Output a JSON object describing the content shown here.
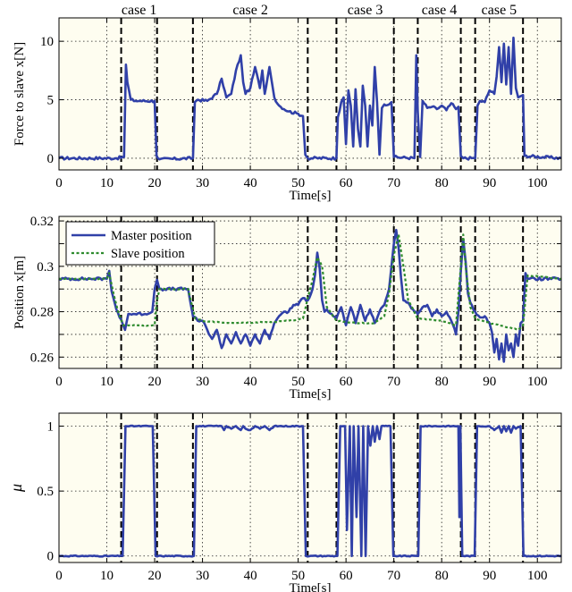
{
  "chart_data": [
    {
      "type": "line",
      "xlabel": "Time[s]",
      "ylabel": "Force to slave x[N]",
      "xlim": [
        0,
        105
      ],
      "ylim": [
        -1,
        12
      ],
      "xticks": [
        0,
        10,
        20,
        30,
        40,
        50,
        60,
        70,
        80,
        90,
        100
      ],
      "yticks": [
        0,
        5,
        10
      ],
      "grid": true,
      "case_markers": [
        13,
        20.5,
        28,
        52,
        58,
        70,
        75,
        84,
        87,
        97
      ],
      "case_labels": [
        {
          "label": "case 1",
          "x": 16.75
        },
        {
          "label": "case 2",
          "x": 40
        },
        {
          "label": "case 3",
          "x": 64
        },
        {
          "label": "case 4",
          "x": 79.5
        },
        {
          "label": "case 5",
          "x": 92
        }
      ],
      "series": [
        {
          "color": "#3040a8",
          "style": "solid",
          "x": [
            0,
            12,
            13.6,
            14,
            14.3,
            15,
            16,
            17,
            20,
            20.4,
            21,
            28,
            28.4,
            29,
            31,
            33,
            34,
            35,
            36,
            37,
            38,
            38.5,
            39,
            40,
            41,
            42,
            42.5,
            43,
            44,
            44.5,
            45,
            46,
            48,
            50,
            51,
            51.5,
            52,
            58,
            58.3,
            59,
            59.5,
            60,
            60.5,
            61,
            61.5,
            62,
            62.5,
            63,
            63.5,
            64,
            64.5,
            65,
            65.5,
            66,
            66.5,
            67,
            67.5,
            68,
            69,
            69.5,
            70,
            74.3,
            74.7,
            75,
            75.5,
            76,
            77,
            78,
            79,
            80,
            81,
            82,
            83,
            83.5,
            84,
            84.5,
            87,
            87.5,
            88,
            89,
            90,
            91,
            91.5,
            92,
            92.5,
            93,
            93.5,
            94,
            94.5,
            95,
            95.5,
            96,
            96.5,
            97,
            97.3,
            105
          ],
          "y": [
            0,
            0,
            0.1,
            8,
            6.5,
            5,
            4.9,
            4.9,
            4.9,
            0.2,
            -0.1,
            0,
            4.8,
            5,
            4.9,
            5.5,
            6.8,
            5.2,
            5.5,
            7.5,
            8.8,
            6.5,
            5.5,
            6,
            7.8,
            6,
            7.5,
            5.5,
            7.8,
            6.5,
            5.2,
            4.5,
            4,
            3.8,
            3.6,
            0.3,
            0,
            0,
            3.5,
            4.8,
            5.2,
            1.2,
            5.8,
            4.5,
            1,
            5.9,
            2.5,
            1,
            6.2,
            4.5,
            1,
            4.5,
            2.8,
            7.8,
            4.8,
            0.3,
            4.3,
            4.6,
            4.6,
            4.8,
            0.1,
            0,
            8.8,
            4,
            0.1,
            4.9,
            4.3,
            4.4,
            4.2,
            4.5,
            4.1,
            4.7,
            4.2,
            4.4,
            0.2,
            0,
            0,
            4.5,
            4.9,
            4.8,
            5.8,
            5.5,
            7,
            9.5,
            6.5,
            9.8,
            6.3,
            9.5,
            5.5,
            10.3,
            6,
            5.2,
            5.3,
            5.4,
            0.2,
            0
          ],
          "noise": 0.12
        }
      ]
    },
    {
      "type": "line",
      "xlabel": "Time[s]",
      "ylabel": "Position x[m]",
      "xlim": [
        0,
        105
      ],
      "ylim": [
        0.255,
        0.322
      ],
      "xticks": [
        0,
        10,
        20,
        30,
        40,
        50,
        60,
        70,
        80,
        90,
        100
      ],
      "yticks": [
        0.26,
        0.27,
        0.28,
        0.29,
        0.3,
        0.31,
        0.32
      ],
      "yticklabels": [
        "0.26",
        "",
        "0.28",
        "",
        "0.3",
        "",
        "0.32"
      ],
      "grid": true,
      "legend": "top-left",
      "case_markers": [
        13,
        20.5,
        28,
        52,
        58,
        70,
        75,
        84,
        87,
        97
      ],
      "series": [
        {
          "name": "Master position",
          "color": "#3040a8",
          "style": "solid",
          "x": [
            0,
            10,
            10.5,
            11,
            11.5,
            12,
            13,
            13.8,
            14.5,
            15.5,
            18,
            19.5,
            20,
            20.5,
            21,
            22,
            27,
            28,
            29,
            30,
            31,
            32,
            33,
            34,
            35,
            36,
            37,
            38,
            39,
            40,
            41,
            42,
            43,
            44,
            45,
            46,
            47,
            48,
            49,
            50,
            51,
            52,
            53,
            53.5,
            54,
            54.5,
            55,
            55.5,
            56,
            57,
            58,
            59,
            60,
            61,
            62,
            63,
            64,
            65,
            66,
            67,
            68,
            69,
            69.5,
            70,
            70.5,
            71,
            71.5,
            72,
            73,
            74,
            75,
            76,
            77,
            78,
            79,
            80,
            81,
            82,
            83,
            83.5,
            84,
            84.5,
            85,
            85.5,
            86,
            87,
            88,
            89,
            90,
            90.5,
            91,
            91.5,
            92,
            92.5,
            93,
            93.5,
            94,
            94.5,
            95,
            95.5,
            96,
            96.5,
            97,
            97.5,
            98,
            105
          ],
          "y": [
            0.2945,
            0.2945,
            0.298,
            0.289,
            0.285,
            0.281,
            0.2765,
            0.272,
            0.279,
            0.279,
            0.279,
            0.28,
            0.29,
            0.294,
            0.29,
            0.29,
            0.29,
            0.278,
            0.276,
            0.276,
            0.272,
            0.268,
            0.272,
            0.264,
            0.27,
            0.266,
            0.271,
            0.266,
            0.27,
            0.265,
            0.27,
            0.266,
            0.272,
            0.268,
            0.275,
            0.278,
            0.28,
            0.28,
            0.283,
            0.283,
            0.286,
            0.285,
            0.29,
            0.296,
            0.306,
            0.299,
            0.285,
            0.28,
            0.281,
            0.279,
            0.277,
            0.282,
            0.274,
            0.282,
            0.275,
            0.283,
            0.276,
            0.281,
            0.275,
            0.28,
            0.283,
            0.29,
            0.3,
            0.31,
            0.316,
            0.308,
            0.295,
            0.285,
            0.284,
            0.281,
            0.279,
            0.282,
            0.283,
            0.278,
            0.281,
            0.278,
            0.28,
            0.276,
            0.27,
            0.28,
            0.298,
            0.312,
            0.302,
            0.288,
            0.284,
            0.28,
            0.2775,
            0.278,
            0.275,
            0.271,
            0.262,
            0.268,
            0.259,
            0.266,
            0.258,
            0.27,
            0.263,
            0.266,
            0.26,
            0.27,
            0.265,
            0.275,
            0.276,
            0.297,
            0.2945,
            0.2945
          ],
          "noise": 0.0006
        },
        {
          "name": "Slave position",
          "color": "#2e8b2e",
          "style": "dashed",
          "x": [
            0,
            10,
            10.5,
            11.5,
            12.5,
            13.5,
            14.5,
            20,
            20.5,
            21,
            27,
            28.5,
            30,
            35,
            45,
            50,
            51,
            52,
            53,
            54,
            55,
            56,
            58,
            62,
            66,
            68,
            69,
            70,
            71,
            72,
            73,
            75,
            80,
            83,
            84,
            84.5,
            85,
            86,
            87,
            90,
            96,
            97,
            98,
            105
          ],
          "y": [
            0.2945,
            0.2945,
            0.297,
            0.287,
            0.279,
            0.274,
            0.274,
            0.274,
            0.285,
            0.29,
            0.29,
            0.277,
            0.276,
            0.275,
            0.2755,
            0.2765,
            0.277,
            0.286,
            0.294,
            0.304,
            0.3,
            0.282,
            0.276,
            0.275,
            0.275,
            0.278,
            0.288,
            0.305,
            0.314,
            0.3,
            0.285,
            0.277,
            0.276,
            0.274,
            0.3,
            0.314,
            0.3,
            0.282,
            0.277,
            0.275,
            0.272,
            0.274,
            0.296,
            0.2945
          ],
          "noise": 0.0002
        }
      ]
    },
    {
      "type": "line",
      "xlabel": "Time[s]",
      "ylabel": "μ",
      "xlim": [
        0,
        105
      ],
      "ylim": [
        -0.05,
        1.1
      ],
      "xticks": [
        0,
        10,
        20,
        30,
        40,
        50,
        60,
        70,
        80,
        90,
        100
      ],
      "yticks": [
        0,
        0.5,
        1
      ],
      "grid": true,
      "case_markers": [
        13,
        20.5,
        28,
        52,
        58,
        70,
        75,
        84,
        87,
        97
      ],
      "series": [
        {
          "color": "#3040a8",
          "style": "solid",
          "x": [
            0,
            13.3,
            13.9,
            19.6,
            20.2,
            28.2,
            28.7,
            34,
            34.5,
            35,
            36,
            37,
            38,
            38.5,
            39,
            40,
            41,
            42,
            43,
            44,
            45,
            46,
            51,
            51.6,
            58.2,
            58.8,
            59.8,
            60.2,
            60.8,
            61.2,
            61.6,
            62.2,
            62.6,
            63.2,
            63.6,
            64.1,
            64.6,
            65.1,
            65.6,
            66,
            66.5,
            67,
            67.4,
            68,
            69.3,
            69.9,
            75.1,
            75.6,
            83.5,
            83.7,
            83.9,
            84.3,
            84.5,
            86.9,
            87.4,
            90,
            91,
            92,
            92.5,
            93,
            93.5,
            94,
            94.5,
            95,
            95.5,
            96.5,
            97.1,
            105
          ],
          "y": [
            0,
            0,
            1,
            1,
            0,
            0,
            1,
            1,
            0.97,
            1,
            0.98,
            1,
            0.97,
            1,
            0.98,
            0.97,
            1,
            0.98,
            1,
            0.97,
            1,
            1,
            1,
            0,
            0,
            1,
            1,
            0.2,
            1,
            0,
            1,
            0.3,
            1,
            0,
            1,
            0,
            1,
            0.85,
            1,
            0.88,
            1,
            0.9,
            1,
            1,
            1,
            0,
            0,
            1,
            1,
            0.3,
            1,
            0,
            0,
            0,
            1,
            1,
            0.97,
            1,
            0.95,
            1,
            0.96,
            1,
            0.95,
            1,
            0.98,
            1,
            0,
            0
          ],
          "noise": 0.004
        }
      ]
    }
  ]
}
